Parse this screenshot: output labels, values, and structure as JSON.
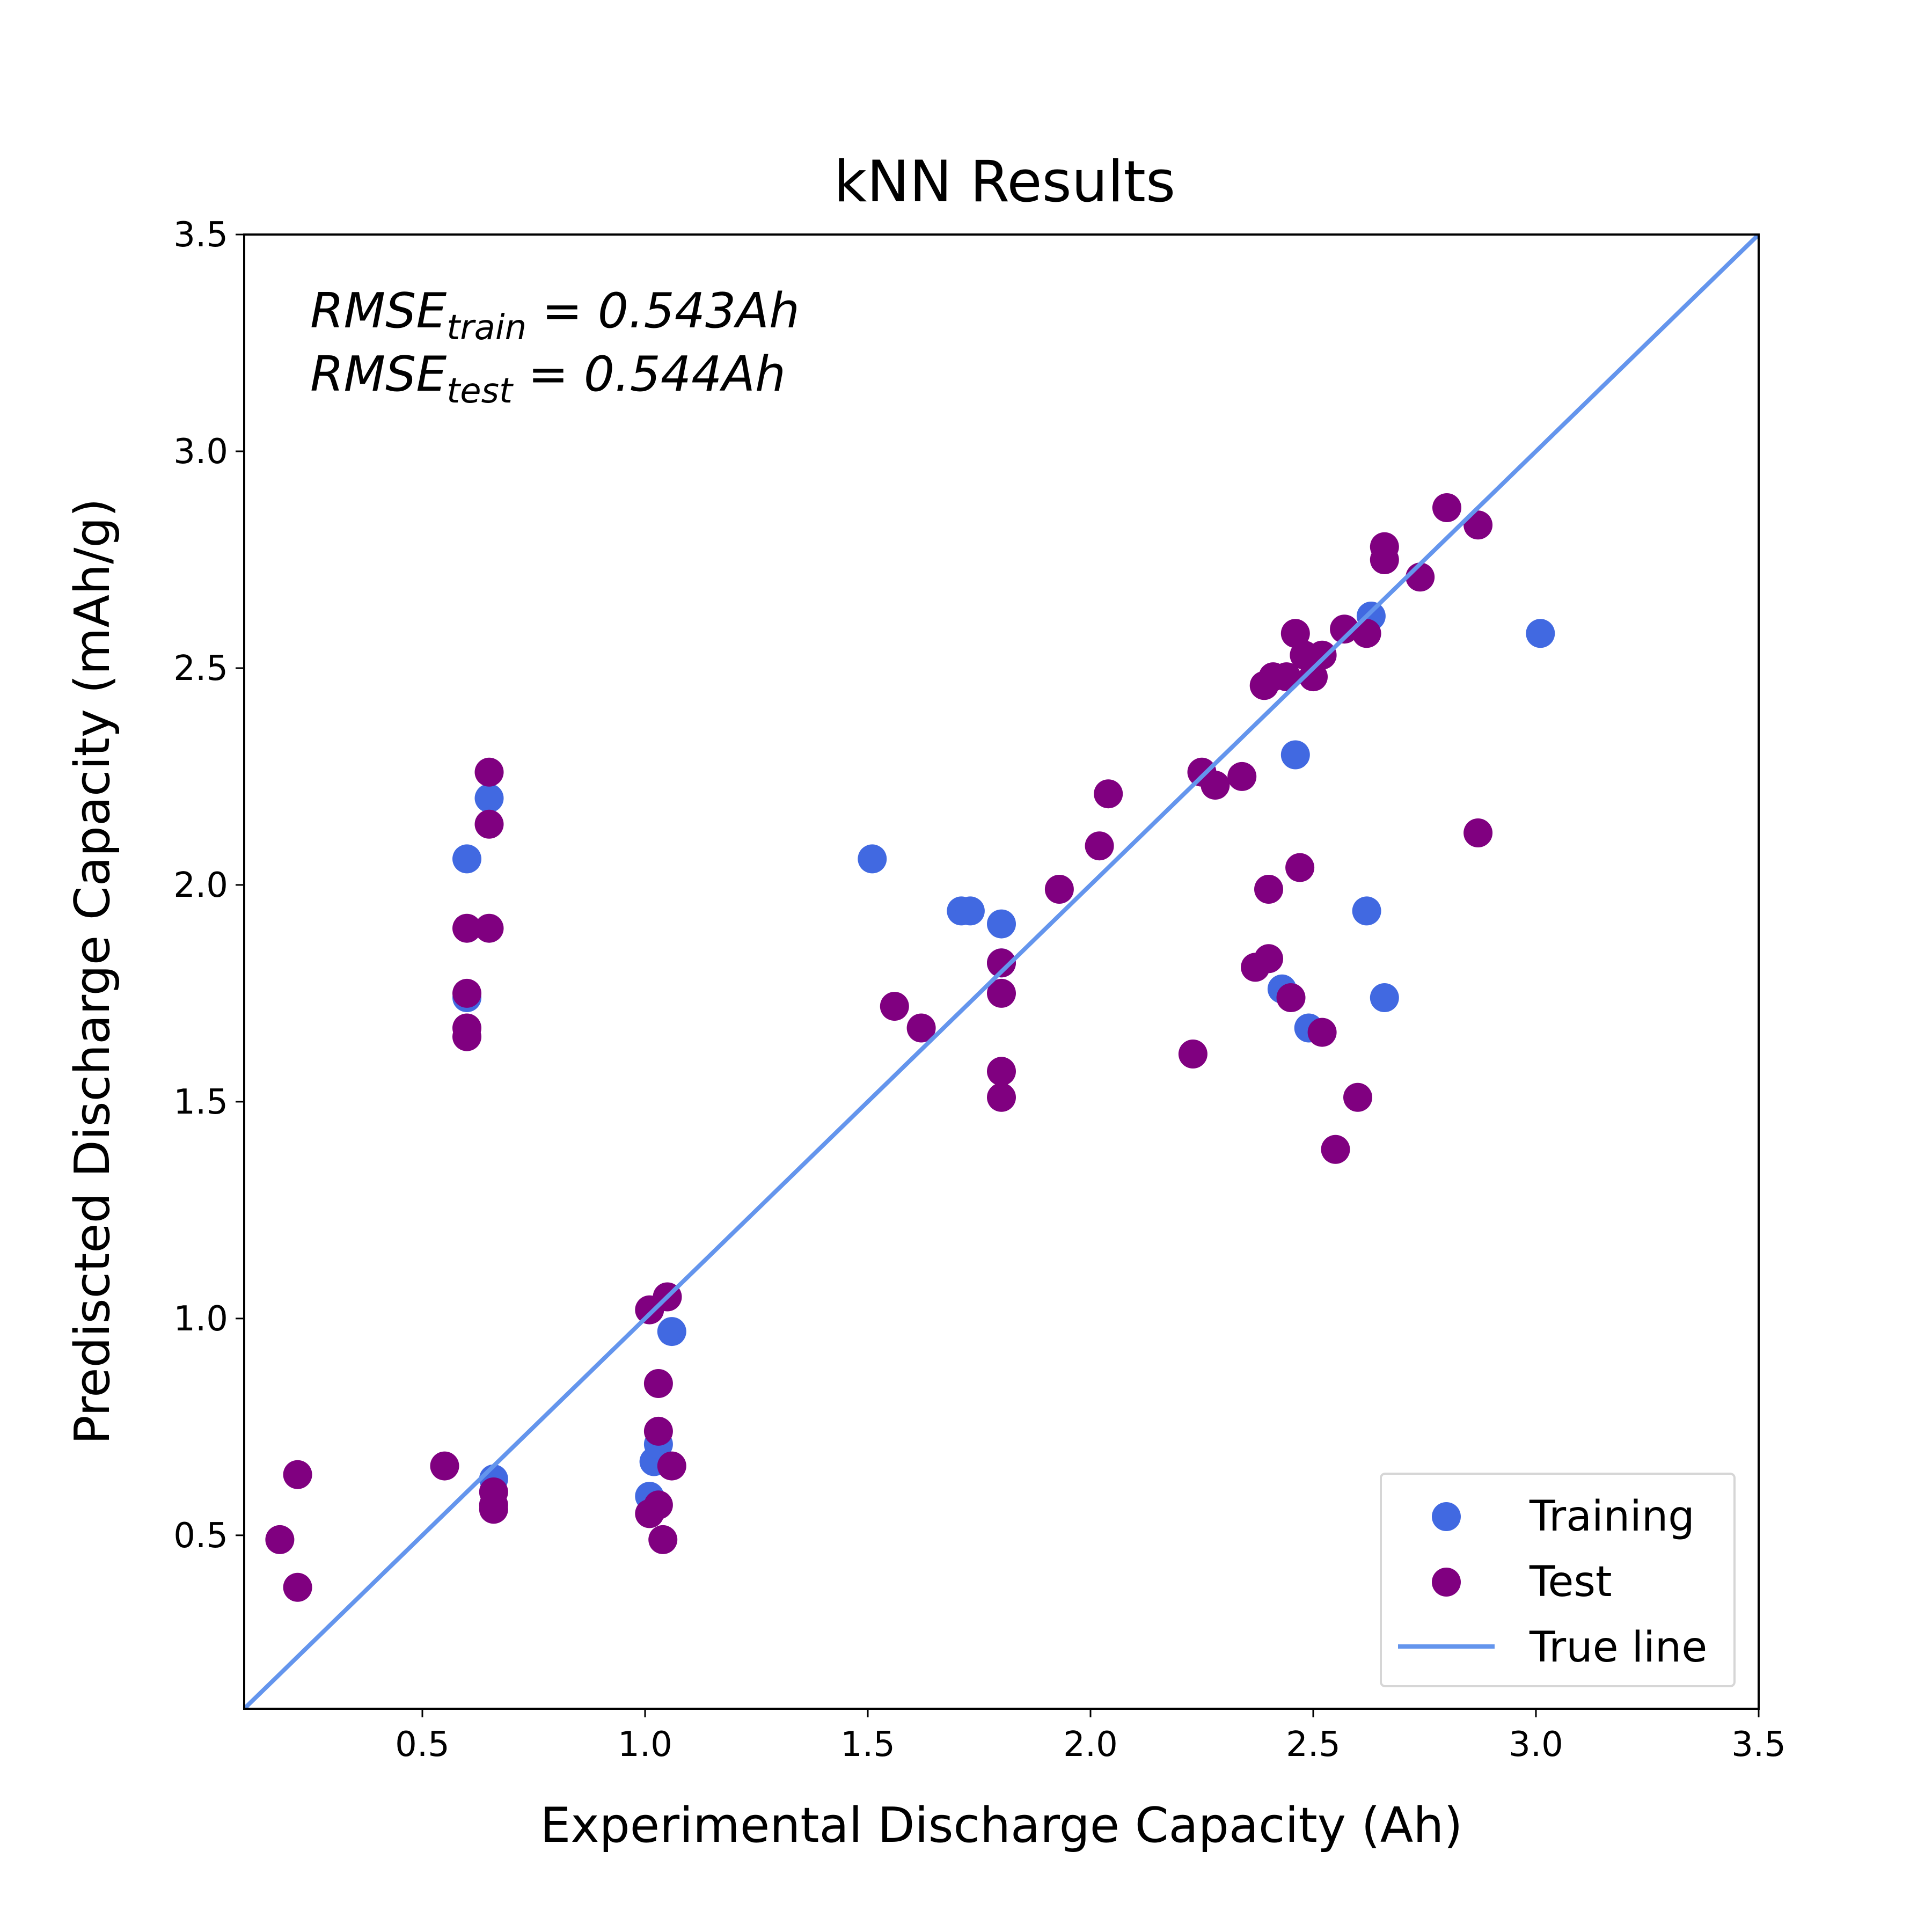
{
  "chart_data": {
    "type": "scatter",
    "title": "kNN Results",
    "xlabel": "Experimental Discharge Capacity (Ah)",
    "ylabel": "Prediscted Discharge Capacity (mAh/g)",
    "xlim": [
      0.1,
      3.5
    ],
    "ylim": [
      0.1,
      3.5
    ],
    "xticks": [
      "0.5",
      "1.0",
      "1.5",
      "2.0",
      "2.5",
      "3.0",
      "3.5"
    ],
    "yticks": [
      "0.5",
      "1.0",
      "1.5",
      "2.0",
      "2.5",
      "3.0",
      "3.5"
    ],
    "grid": false,
    "legend_position": "lower-right",
    "annotations": [
      {
        "base": "RMSE",
        "sub": "train",
        "rest": " = 0.543Ah"
      },
      {
        "base": "RMSE",
        "sub": "test",
        "rest": " = 0.544Ah"
      }
    ],
    "series": [
      {
        "name": "Training",
        "color": "#4169e1",
        "points": [
          [
            0.6,
            2.06
          ],
          [
            0.65,
            2.2
          ],
          [
            0.6,
            1.74
          ],
          [
            0.66,
            0.63
          ],
          [
            1.51,
            2.06
          ],
          [
            1.71,
            1.94
          ],
          [
            1.73,
            1.94
          ],
          [
            1.8,
            1.91
          ],
          [
            1.8,
            1.82
          ],
          [
            1.06,
            0.97
          ],
          [
            1.02,
            0.67
          ],
          [
            1.03,
            0.71
          ],
          [
            1.01,
            0.59
          ],
          [
            2.46,
            2.3
          ],
          [
            2.43,
            1.76
          ],
          [
            2.49,
            1.67
          ],
          [
            2.62,
            1.94
          ],
          [
            2.66,
            1.74
          ],
          [
            2.63,
            2.62
          ],
          [
            3.01,
            2.58
          ]
        ]
      },
      {
        "name": "Test",
        "color": "#800080",
        "points": [
          [
            0.18,
            0.49
          ],
          [
            0.22,
            0.64
          ],
          [
            0.22,
            0.38
          ],
          [
            0.55,
            0.66
          ],
          [
            0.66,
            0.6
          ],
          [
            0.66,
            0.57
          ],
          [
            0.66,
            0.56
          ],
          [
            0.65,
            2.26
          ],
          [
            0.65,
            2.14
          ],
          [
            0.6,
            1.9
          ],
          [
            0.65,
            1.9
          ],
          [
            0.6,
            1.75
          ],
          [
            0.6,
            1.67
          ],
          [
            0.6,
            1.65
          ],
          [
            1.01,
            1.02
          ],
          [
            1.05,
            1.05
          ],
          [
            1.03,
            0.85
          ],
          [
            1.03,
            0.74
          ],
          [
            1.06,
            0.66
          ],
          [
            1.03,
            0.57
          ],
          [
            1.01,
            0.55
          ],
          [
            1.04,
            0.49
          ],
          [
            1.56,
            1.72
          ],
          [
            1.62,
            1.67
          ],
          [
            1.8,
            1.82
          ],
          [
            1.8,
            1.75
          ],
          [
            1.8,
            1.57
          ],
          [
            1.8,
            1.51
          ],
          [
            1.93,
            1.99
          ],
          [
            2.02,
            2.09
          ],
          [
            2.04,
            2.21
          ],
          [
            2.23,
            1.61
          ],
          [
            2.25,
            2.26
          ],
          [
            2.28,
            2.23
          ],
          [
            2.34,
            2.25
          ],
          [
            2.39,
            2.46
          ],
          [
            2.41,
            2.48
          ],
          [
            2.44,
            2.48
          ],
          [
            2.46,
            2.58
          ],
          [
            2.48,
            2.53
          ],
          [
            2.5,
            2.48
          ],
          [
            2.52,
            2.53
          ],
          [
            2.57,
            2.59
          ],
          [
            2.62,
            2.58
          ],
          [
            2.37,
            1.81
          ],
          [
            2.4,
            1.83
          ],
          [
            2.4,
            1.99
          ],
          [
            2.47,
            2.04
          ],
          [
            2.45,
            1.74
          ],
          [
            2.52,
            1.66
          ],
          [
            2.55,
            1.39
          ],
          [
            2.6,
            1.51
          ],
          [
            2.66,
            2.78
          ],
          [
            2.66,
            2.75
          ],
          [
            2.74,
            2.71
          ],
          [
            2.8,
            2.87
          ],
          [
            2.87,
            2.83
          ],
          [
            2.87,
            2.12
          ]
        ]
      },
      {
        "name": "True line",
        "color": "#6495ed",
        "line": [
          [
            0.1,
            0.1
          ],
          [
            3.5,
            3.5
          ]
        ]
      }
    ]
  }
}
